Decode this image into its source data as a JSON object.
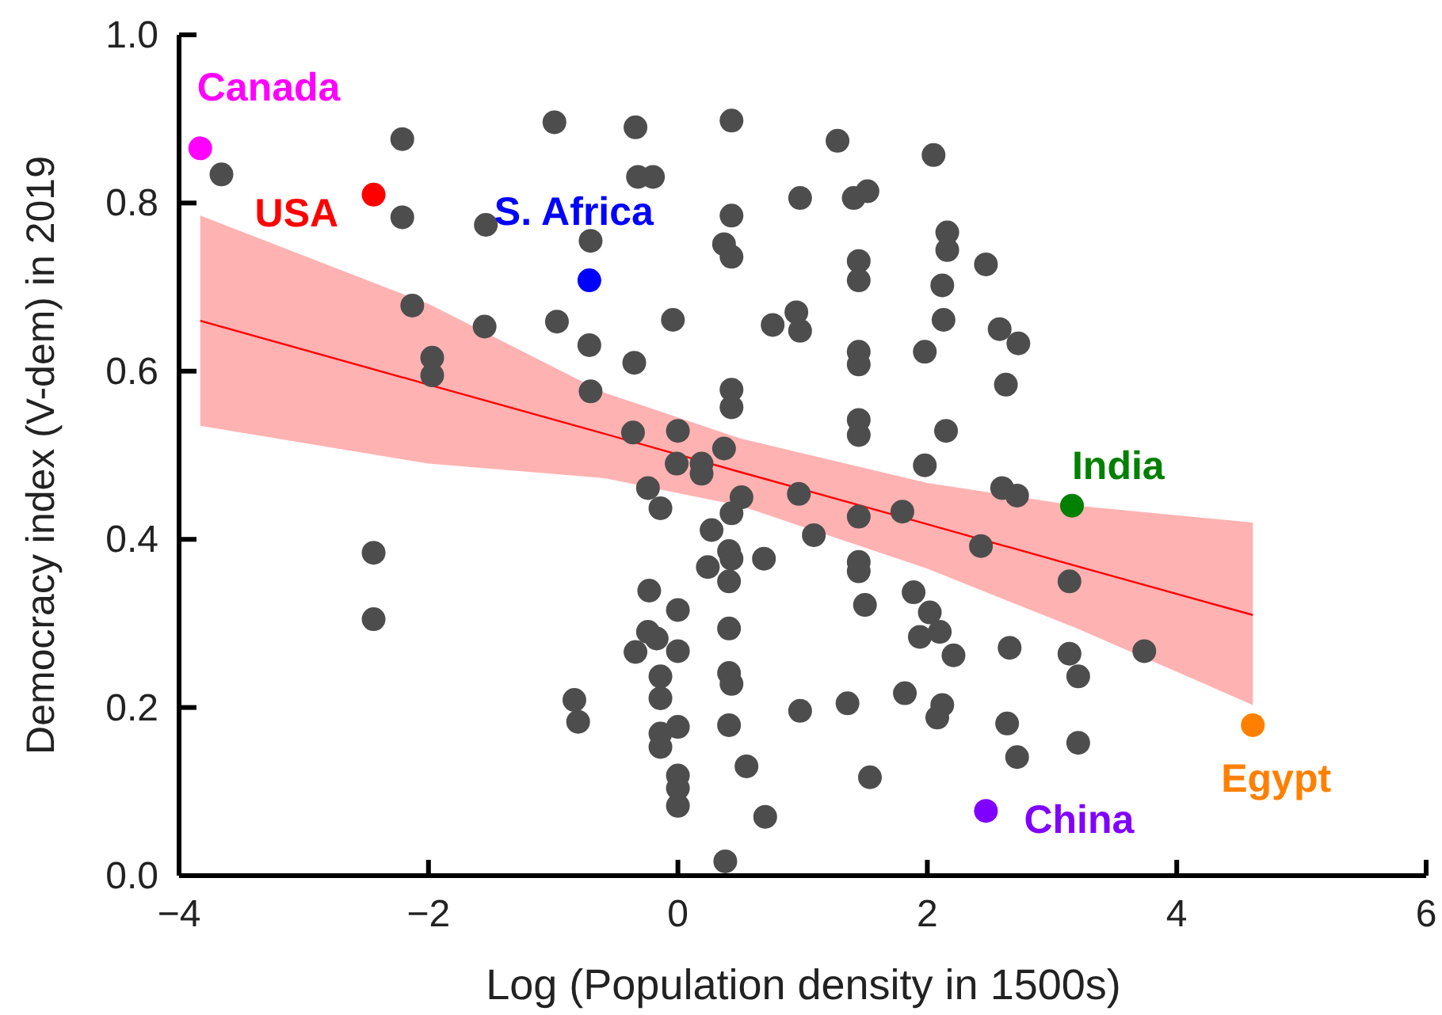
{
  "chart_data": {
    "type": "scatter",
    "xlabel": "Log (Population density in 1500s)",
    "ylabel": "Democracy index (V-dem) in 2019",
    "xlim": [
      -4,
      6
    ],
    "xticks": [
      -4,
      -2,
      0,
      2,
      4,
      6
    ],
    "ylim": [
      0,
      1
    ],
    "yticks": [
      {
        "value": 0,
        "label": "0.0"
      },
      0.2,
      0.4,
      0.6,
      0.8,
      {
        "value": 1,
        "label": "1.0"
      }
    ],
    "grid": false,
    "marker": "circle",
    "series": [
      {
        "type": "line",
        "marker": "none",
        "color": "#ff0000",
        "x": [
          -3.83,
          -2,
          -0.6,
          0.5,
          2,
          3.2,
          4.61
        ],
        "values": [
          0.66,
          0.584,
          0.526,
          0.48,
          0.418,
          0.368,
          0.31
        ],
        "lower": [
          0.535,
          0.49,
          0.473,
          0.44,
          0.365,
          0.294,
          0.203
        ],
        "upper": [
          0.785,
          0.68,
          0.575,
          0.52,
          0.467,
          0.44,
          0.42
        ]
      },
      {
        "color": "#4d4d4d",
        "x": [
          -3.66,
          -2.21,
          -2.21,
          -0.99,
          -0.34,
          -0.32,
          -0.2,
          -1.54,
          -0.7,
          -2.13,
          -1.55,
          -0.97,
          -0.71,
          -0.35,
          -1.97,
          -1.97,
          -0.7,
          -0.36,
          0.43,
          1.28,
          2.05,
          0.98,
          1.41,
          1.52,
          0.43,
          0.37,
          0.43,
          2.16,
          2.16,
          2.47,
          1.45,
          1.45,
          2.12,
          -0.04,
          0.76,
          0.95,
          0.98,
          1.45,
          1.45,
          1.98,
          2.13,
          2.58,
          2.73,
          0.43,
          0.43,
          2.63,
          1.45,
          1.45,
          2.15,
          0,
          0.37,
          -0.01,
          0.19,
          0.19,
          1.98,
          -0.24,
          -0.14,
          0.51,
          0.97,
          2.6,
          2.72,
          0.43,
          1.45,
          1.8,
          0.27,
          1.09,
          2.43,
          0.41,
          0.43,
          0.69,
          1.45,
          1.45,
          0.24,
          0.41,
          3.14,
          -0.23,
          1.89,
          0,
          1.5,
          2.02,
          0.41,
          -0.24,
          -0.17,
          2.1,
          1.94,
          -0.34,
          0,
          2.21,
          2.66,
          3.14,
          3.74,
          0.41,
          0.43,
          -0.14,
          3.21,
          -0.14,
          1.82,
          1.36,
          0.98,
          2.12,
          2.08,
          2.64,
          0.41,
          0,
          -0.14,
          -0.14,
          2.72,
          3.21,
          0.55,
          1.54,
          0,
          0,
          0,
          0.7,
          0.38,
          -2.44,
          -2.44,
          -0.83,
          -0.8
        ],
        "values": [
          0.834,
          0.876,
          0.783,
          0.896,
          0.89,
          0.831,
          0.831,
          0.774,
          0.755,
          0.678,
          0.653,
          0.659,
          0.631,
          0.61,
          0.616,
          0.595,
          0.576,
          0.527,
          0.898,
          0.874,
          0.857,
          0.806,
          0.806,
          0.814,
          0.785,
          0.751,
          0.736,
          0.765,
          0.744,
          0.727,
          0.731,
          0.708,
          0.702,
          0.661,
          0.655,
          0.67,
          0.648,
          0.623,
          0.608,
          0.623,
          0.661,
          0.65,
          0.633,
          0.578,
          0.557,
          0.584,
          0.542,
          0.524,
          0.529,
          0.529,
          0.508,
          0.49,
          0.49,
          0.478,
          0.488,
          0.461,
          0.437,
          0.45,
          0.454,
          0.461,
          0.452,
          0.431,
          0.427,
          0.433,
          0.411,
          0.405,
          0.392,
          0.386,
          0.377,
          0.377,
          0.373,
          0.362,
          0.367,
          0.35,
          0.35,
          0.339,
          0.337,
          0.316,
          0.322,
          0.313,
          0.294,
          0.29,
          0.282,
          0.29,
          0.284,
          0.266,
          0.267,
          0.262,
          0.271,
          0.264,
          0.267,
          0.241,
          0.228,
          0.237,
          0.237,
          0.211,
          0.217,
          0.205,
          0.196,
          0.203,
          0.188,
          0.181,
          0.179,
          0.177,
          0.169,
          0.153,
          0.141,
          0.158,
          0.13,
          0.117,
          0.119,
          0.104,
          0.083,
          0.07,
          0.017,
          0.384,
          0.305,
          0.209,
          0.183
        ]
      },
      {
        "name": "Canada",
        "color": "#ff00ff",
        "x": [
          -3.83
        ],
        "values": [
          0.865
        ]
      },
      {
        "name": "USA",
        "color": "#ff0000",
        "x": [
          -2.44
        ],
        "values": [
          0.81
        ]
      },
      {
        "name": "S. Africa",
        "color": "#0000ff",
        "x": [
          -0.71
        ],
        "values": [
          0.708
        ]
      },
      {
        "name": "India",
        "color": "#008000",
        "x": [
          3.16
        ],
        "values": [
          0.44
        ]
      },
      {
        "name": "China",
        "color": "#8000ff",
        "x": [
          2.47
        ],
        "values": [
          0.077
        ]
      },
      {
        "name": "Egypt",
        "color": "#ff8000",
        "x": [
          4.61
        ],
        "values": [
          0.179
        ]
      }
    ]
  }
}
